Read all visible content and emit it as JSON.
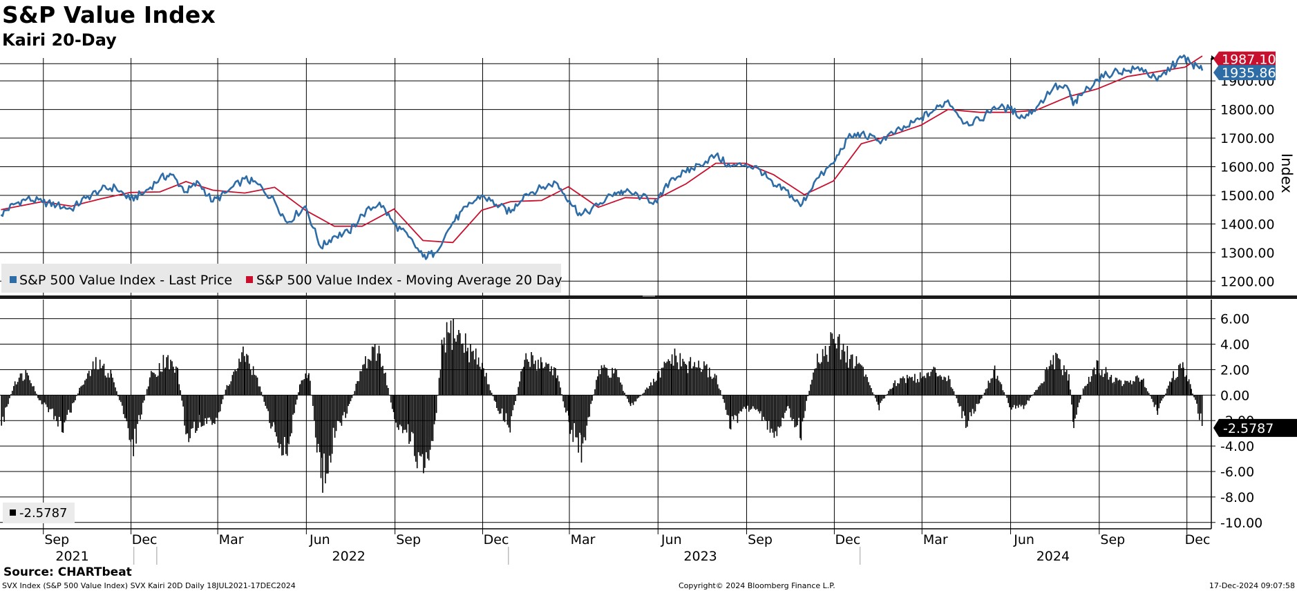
{
  "header": {
    "title": "S&P Value Index",
    "subtitle": "Kairi 20-Day"
  },
  "footer": {
    "source": "Source: CHARTbeat",
    "left": "SVX Index (S&P 500 Value Index) SVX Kairi 20D  Daily 18JUL2021-17DEC2024",
    "center": "Copyright© 2024 Bloomberg Finance L.P.",
    "right": "17-Dec-2024 09:07:58"
  },
  "colors": {
    "price": "#2e6ca6",
    "ma": "#c8102e",
    "kairi": "#000000",
    "grid": "#000000",
    "legend_bg": "#e8e8e8",
    "price_tag_bg": "#2e6ca6",
    "ma_tag_bg": "#c8102e",
    "kairi_tag_bg": "#000000"
  },
  "chart_data": [
    {
      "type": "line",
      "panel": "upper",
      "ylabel": "Index",
      "ylim": [
        1150,
        1980
      ],
      "yticks": [
        1200,
        1300,
        1400,
        1500,
        1600,
        1700,
        1800,
        1900
      ],
      "ytick_labels": [
        "1200.00",
        "1300.00",
        "1400.00",
        "1500.00",
        "1600.00",
        "1700.00",
        "1800.00",
        "1900.00"
      ],
      "x_months": [
        "Sep",
        "Dec",
        "Mar",
        "Jun",
        "Sep",
        "Dec",
        "Mar",
        "Jun",
        "Sep",
        "Dec",
        "Mar",
        "Jun",
        "Sep",
        "Dec"
      ],
      "x_years": [
        "2021",
        "2022",
        "2023",
        "2024"
      ],
      "x_range": [
        "2021-07-18",
        "2024-12-17"
      ],
      "legend_placement": "bottom-left",
      "series": [
        {
          "name": "S&P 500 Value Index - Last Price",
          "last_value_label": "1935.86",
          "points": [
            [
              "2021-07-19",
              1432
            ],
            [
              "2021-08-01",
              1468
            ],
            [
              "2021-08-15",
              1488
            ],
            [
              "2021-08-31",
              1476
            ],
            [
              "2021-09-15",
              1466
            ],
            [
              "2021-09-30",
              1452
            ],
            [
              "2021-10-15",
              1490
            ],
            [
              "2021-10-31",
              1520
            ],
            [
              "2021-11-15",
              1528
            ],
            [
              "2021-11-30",
              1485
            ],
            [
              "2021-12-15",
              1510
            ],
            [
              "2021-12-31",
              1560
            ],
            [
              "2022-01-12",
              1572
            ],
            [
              "2022-01-27",
              1512
            ],
            [
              "2022-02-09",
              1545
            ],
            [
              "2022-02-24",
              1478
            ],
            [
              "2022-03-10",
              1510
            ],
            [
              "2022-03-29",
              1558
            ],
            [
              "2022-04-12",
              1538
            ],
            [
              "2022-04-29",
              1480
            ],
            [
              "2022-05-12",
              1405
            ],
            [
              "2022-05-31",
              1462
            ],
            [
              "2022-06-16",
              1318
            ],
            [
              "2022-06-30",
              1358
            ],
            [
              "2022-07-15",
              1370
            ],
            [
              "2022-07-29",
              1432
            ],
            [
              "2022-08-16",
              1475
            ],
            [
              "2022-08-31",
              1400
            ],
            [
              "2022-09-15",
              1355
            ],
            [
              "2022-09-30",
              1285
            ],
            [
              "2022-10-12",
              1298
            ],
            [
              "2022-10-31",
              1405
            ],
            [
              "2022-11-15",
              1460
            ],
            [
              "2022-11-30",
              1500
            ],
            [
              "2022-12-15",
              1468
            ],
            [
              "2022-12-30",
              1440
            ],
            [
              "2023-01-13",
              1502
            ],
            [
              "2023-01-31",
              1525
            ],
            [
              "2023-02-15",
              1545
            ],
            [
              "2023-03-01",
              1482
            ],
            [
              "2023-03-13",
              1430
            ],
            [
              "2023-03-31",
              1465
            ],
            [
              "2023-04-17",
              1510
            ],
            [
              "2023-04-28",
              1512
            ],
            [
              "2023-05-15",
              1495
            ],
            [
              "2023-05-31",
              1475
            ],
            [
              "2023-06-15",
              1560
            ],
            [
              "2023-06-30",
              1580
            ],
            [
              "2023-07-14",
              1608
            ],
            [
              "2023-07-31",
              1640
            ],
            [
              "2023-08-15",
              1600
            ],
            [
              "2023-08-31",
              1608
            ],
            [
              "2023-09-15",
              1590
            ],
            [
              "2023-09-29",
              1532
            ],
            [
              "2023-10-12",
              1518
            ],
            [
              "2023-10-27",
              1462
            ],
            [
              "2023-11-10",
              1545
            ],
            [
              "2023-11-30",
              1612
            ],
            [
              "2023-12-15",
              1700
            ],
            [
              "2023-12-29",
              1715
            ],
            [
              "2024-01-16",
              1690
            ],
            [
              "2024-01-31",
              1716
            ],
            [
              "2024-02-15",
              1740
            ],
            [
              "2024-02-29",
              1770
            ],
            [
              "2024-03-15",
              1800
            ],
            [
              "2024-03-28",
              1832
            ],
            [
              "2024-04-15",
              1752
            ],
            [
              "2024-04-30",
              1762
            ],
            [
              "2024-05-15",
              1810
            ],
            [
              "2024-05-31",
              1802
            ],
            [
              "2024-06-14",
              1772
            ],
            [
              "2024-06-28",
              1808
            ],
            [
              "2024-07-16",
              1880
            ],
            [
              "2024-07-31",
              1872
            ],
            [
              "2024-08-05",
              1815
            ],
            [
              "2024-08-15",
              1858
            ],
            [
              "2024-08-30",
              1905
            ],
            [
              "2024-09-16",
              1932
            ],
            [
              "2024-09-30",
              1935
            ],
            [
              "2024-10-15",
              1945
            ],
            [
              "2024-10-31",
              1900
            ],
            [
              "2024-11-15",
              1950
            ],
            [
              "2024-11-27",
              1985
            ],
            [
              "2024-12-05",
              1962
            ],
            [
              "2024-12-17",
              1936
            ]
          ]
        },
        {
          "name": "S&P 500 Value Index - Moving Average 20 Day",
          "last_value_label": "1987.10",
          "points": [
            [
              "2021-07-19",
              1450
            ],
            [
              "2021-08-31",
              1478
            ],
            [
              "2021-09-30",
              1462
            ],
            [
              "2021-10-31",
              1488
            ],
            [
              "2021-11-30",
              1510
            ],
            [
              "2021-12-31",
              1512
            ],
            [
              "2022-01-27",
              1548
            ],
            [
              "2022-02-24",
              1518
            ],
            [
              "2022-03-29",
              1508
            ],
            [
              "2022-04-29",
              1528
            ],
            [
              "2022-05-31",
              1448
            ],
            [
              "2022-06-30",
              1392
            ],
            [
              "2022-07-29",
              1392
            ],
            [
              "2022-08-31",
              1452
            ],
            [
              "2022-09-30",
              1342
            ],
            [
              "2022-10-31",
              1335
            ],
            [
              "2022-11-30",
              1448
            ],
            [
              "2022-12-30",
              1478
            ],
            [
              "2023-01-31",
              1482
            ],
            [
              "2023-02-28",
              1530
            ],
            [
              "2023-03-31",
              1458
            ],
            [
              "2023-04-28",
              1492
            ],
            [
              "2023-05-31",
              1488
            ],
            [
              "2023-06-30",
              1540
            ],
            [
              "2023-07-31",
              1612
            ],
            [
              "2023-08-31",
              1612
            ],
            [
              "2023-09-29",
              1572
            ],
            [
              "2023-10-31",
              1502
            ],
            [
              "2023-11-30",
              1550
            ],
            [
              "2023-12-29",
              1680
            ],
            [
              "2024-01-31",
              1712
            ],
            [
              "2024-02-29",
              1745
            ],
            [
              "2024-03-28",
              1800
            ],
            [
              "2024-04-30",
              1790
            ],
            [
              "2024-05-31",
              1790
            ],
            [
              "2024-06-28",
              1798
            ],
            [
              "2024-07-31",
              1845
            ],
            [
              "2024-08-30",
              1872
            ],
            [
              "2024-09-30",
              1915
            ],
            [
              "2024-10-31",
              1932
            ],
            [
              "2024-11-29",
              1948
            ],
            [
              "2024-12-17",
              1987
            ]
          ]
        }
      ]
    },
    {
      "type": "bar",
      "panel": "lower",
      "ylim": [
        -10.5,
        7.5
      ],
      "yticks": [
        6,
        4,
        2,
        0,
        -2,
        -4,
        -6,
        -8,
        -10
      ],
      "ytick_labels": [
        "6.00",
        "4.00",
        "2.00",
        "0.00",
        "-2.00",
        "-4.00",
        "-6.00",
        "-8.00",
        "-10.00"
      ],
      "legend": "-2.5787",
      "last_value_label": "-2.5787",
      "series": [
        {
          "name": "SVX Kairi 20D",
          "anchors": [
            [
              "2021-07-19",
              -2.5
            ],
            [
              "2021-08-02",
              1.2
            ],
            [
              "2021-08-16",
              2.0
            ],
            [
              "2021-08-27",
              -0.5
            ],
            [
              "2021-09-10",
              -1.5
            ],
            [
              "2021-09-21",
              -2.8
            ],
            [
              "2021-10-08",
              0.5
            ],
            [
              "2021-10-25",
              2.6
            ],
            [
              "2021-11-10",
              1.8
            ],
            [
              "2021-11-26",
              -2.5
            ],
            [
              "2021-12-03",
              -4.2
            ],
            [
              "2021-12-20",
              1.5
            ],
            [
              "2022-01-05",
              3.0
            ],
            [
              "2022-01-18",
              2.0
            ],
            [
              "2022-01-28",
              -3.8
            ],
            [
              "2022-02-10",
              -2.0
            ],
            [
              "2022-02-24",
              -3.0
            ],
            [
              "2022-03-10",
              0.8
            ],
            [
              "2022-03-29",
              3.5
            ],
            [
              "2022-04-12",
              1.0
            ],
            [
              "2022-04-29",
              -3.5
            ],
            [
              "2022-05-12",
              -4.5
            ],
            [
              "2022-05-25",
              1.0
            ],
            [
              "2022-06-03",
              2.0
            ],
            [
              "2022-06-16",
              -7.5
            ],
            [
              "2022-06-30",
              -3.5
            ],
            [
              "2022-07-15",
              -1.0
            ],
            [
              "2022-07-29",
              2.5
            ],
            [
              "2022-08-16",
              3.8
            ],
            [
              "2022-08-31",
              -2.0
            ],
            [
              "2022-09-15",
              -3.5
            ],
            [
              "2022-09-30",
              -6.0
            ],
            [
              "2022-10-12",
              -2.5
            ],
            [
              "2022-10-20",
              4.5
            ],
            [
              "2022-10-31",
              5.5
            ],
            [
              "2022-11-15",
              4.0
            ],
            [
              "2022-11-30",
              2.5
            ],
            [
              "2022-12-15",
              -1.0
            ],
            [
              "2022-12-29",
              -2.5
            ],
            [
              "2023-01-13",
              3.0
            ],
            [
              "2023-01-31",
              2.8
            ],
            [
              "2023-02-15",
              2.0
            ],
            [
              "2023-02-28",
              -2.5
            ],
            [
              "2023-03-13",
              -4.5
            ],
            [
              "2023-03-31",
              2.0
            ],
            [
              "2023-04-17",
              2.0
            ],
            [
              "2023-05-03",
              -1.0
            ],
            [
              "2023-05-31",
              1.5
            ],
            [
              "2023-06-15",
              3.2
            ],
            [
              "2023-06-30",
              2.5
            ],
            [
              "2023-07-14",
              2.5
            ],
            [
              "2023-07-31",
              1.5
            ],
            [
              "2023-08-15",
              -2.5
            ],
            [
              "2023-08-31",
              -1.0
            ],
            [
              "2023-09-15",
              -1.5
            ],
            [
              "2023-09-29",
              -3.5
            ],
            [
              "2023-10-12",
              -1.0
            ],
            [
              "2023-10-27",
              -3.0
            ],
            [
              "2023-11-10",
              2.8
            ],
            [
              "2023-11-30",
              4.5
            ],
            [
              "2023-12-15",
              3.2
            ],
            [
              "2023-12-29",
              2.5
            ],
            [
              "2024-01-16",
              -1.0
            ],
            [
              "2024-01-31",
              1.0
            ],
            [
              "2024-02-15",
              1.5
            ],
            [
              "2024-02-29",
              1.5
            ],
            [
              "2024-03-15",
              2.0
            ],
            [
              "2024-03-28",
              1.5
            ],
            [
              "2024-04-15",
              -2.5
            ],
            [
              "2024-04-30",
              -0.5
            ],
            [
              "2024-05-15",
              2.2
            ],
            [
              "2024-05-31",
              -1.0
            ],
            [
              "2024-06-14",
              -1.0
            ],
            [
              "2024-06-28",
              0.5
            ],
            [
              "2024-07-16",
              3.0
            ],
            [
              "2024-07-31",
              1.5
            ],
            [
              "2024-08-05",
              -2.5
            ],
            [
              "2024-08-15",
              0.5
            ],
            [
              "2024-08-30",
              2.5
            ],
            [
              "2024-09-16",
              1.2
            ],
            [
              "2024-09-30",
              1.0
            ],
            [
              "2024-10-15",
              1.5
            ],
            [
              "2024-10-31",
              -1.5
            ],
            [
              "2024-11-15",
              1.5
            ],
            [
              "2024-11-27",
              2.4
            ],
            [
              "2024-12-05",
              0.5
            ],
            [
              "2024-12-17",
              -2.58
            ]
          ]
        }
      ]
    }
  ]
}
